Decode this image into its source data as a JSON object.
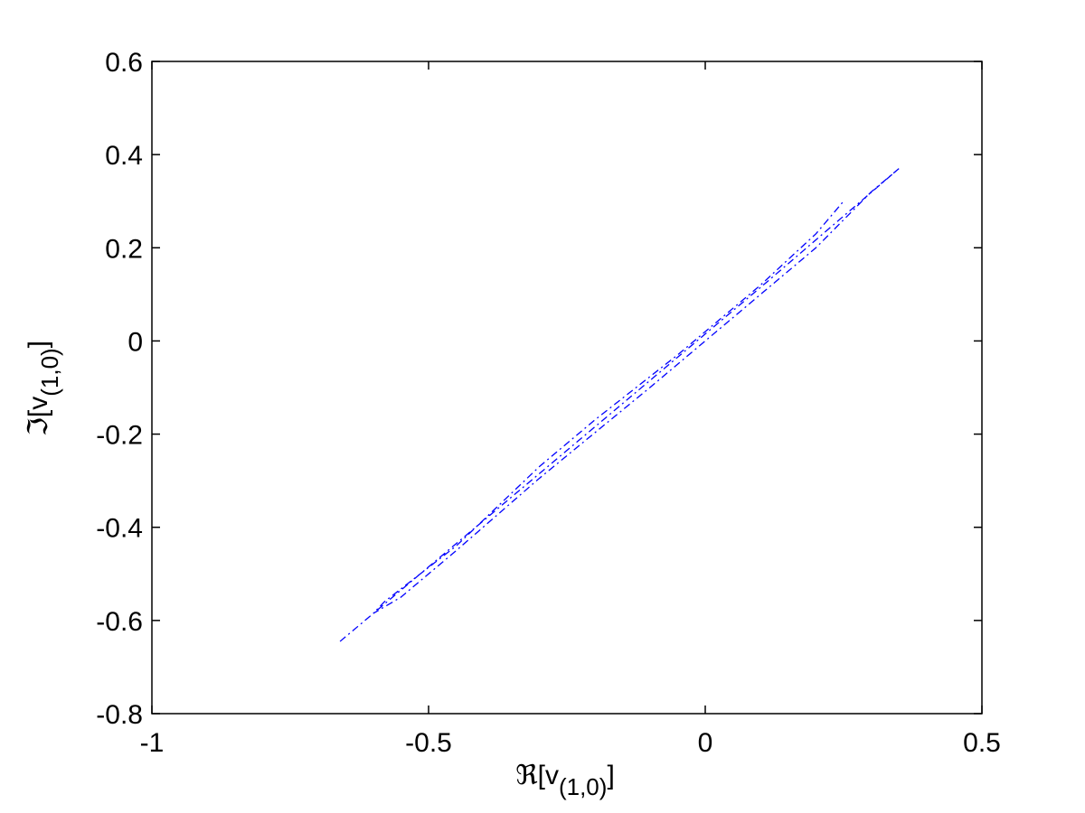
{
  "chart_data": {
    "type": "line",
    "x_label": [
      "ℜ[v",
      "(1,0)",
      "]"
    ],
    "y_label": [
      "ℑ[v",
      "(1,0)",
      "]"
    ],
    "xlim": [
      -1,
      0.5
    ],
    "xticks": [
      -1,
      -0.5,
      0,
      0.5
    ],
    "ylim": [
      -0.8,
      0.6
    ],
    "yticks": [
      -0.8,
      -0.6,
      -0.4,
      -0.2,
      0,
      0.2,
      0.4,
      0.6
    ],
    "grid": false,
    "series": [
      {
        "color": "#0000ff",
        "x": [
          -0.66,
          -0.5,
          -0.3,
          -0.1,
          0.1,
          0.35,
          0.3,
          0.25,
          0.2,
          0.05,
          -0.1,
          -0.3,
          -0.45,
          -0.55,
          -0.6,
          -0.58,
          -0.45,
          -0.3,
          -0.2,
          -0.05,
          0.1,
          0.2,
          0.25
        ],
        "values": [
          -0.645,
          -0.485,
          -0.285,
          -0.085,
          0.115,
          0.37,
          0.32,
          0.26,
          0.2,
          0.05,
          -0.1,
          -0.295,
          -0.45,
          -0.55,
          -0.585,
          -0.56,
          -0.44,
          -0.27,
          -0.17,
          -0.03,
          0.12,
          0.23,
          0.3
        ]
      }
    ]
  }
}
